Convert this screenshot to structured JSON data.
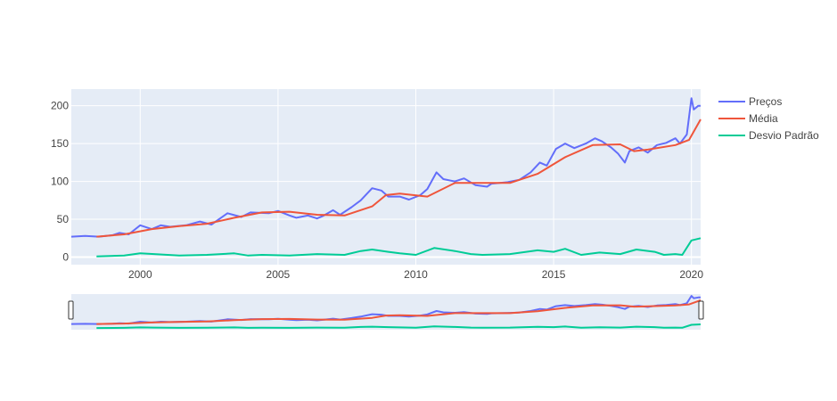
{
  "chart_data": {
    "type": "line",
    "title": "",
    "xlabel": "",
    "ylabel": "",
    "x_axis": {
      "type": "date",
      "range": [
        "1997-07-01",
        "2020-05-01"
      ],
      "ticks": [
        "2000",
        "2005",
        "2010",
        "2015",
        "2020"
      ]
    },
    "y_axis": {
      "range": [
        -10,
        222
      ],
      "ticks": [
        0,
        50,
        100,
        150,
        200
      ],
      "tick_labels": [
        "0",
        "50",
        "100",
        "150",
        "200"
      ]
    },
    "grid": true,
    "legend_position": "right",
    "range_slider": true,
    "series": [
      {
        "name": "Preços",
        "color": "#636efa",
        "points": [
          [
            "1997-07-01",
            27
          ],
          [
            "1998-01-01",
            28
          ],
          [
            "1998-07-01",
            27
          ],
          [
            "1999-01-01",
            29
          ],
          [
            "1999-04-01",
            32
          ],
          [
            "1999-08-01",
            30
          ],
          [
            "2000-01-01",
            42
          ],
          [
            "2000-06-01",
            37
          ],
          [
            "2000-10-01",
            42
          ],
          [
            "2001-02-01",
            40
          ],
          [
            "2001-09-01",
            42
          ],
          [
            "2002-03-01",
            47
          ],
          [
            "2002-08-01",
            43
          ],
          [
            "2003-03-01",
            58
          ],
          [
            "2003-09-01",
            53
          ],
          [
            "2004-01-01",
            59
          ],
          [
            "2004-09-01",
            58
          ],
          [
            "2005-01-01",
            61
          ],
          [
            "2005-06-01",
            55
          ],
          [
            "2005-09-01",
            52
          ],
          [
            "2006-02-01",
            55
          ],
          [
            "2006-06-01",
            51
          ],
          [
            "2006-09-01",
            55
          ],
          [
            "2007-01-01",
            62
          ],
          [
            "2007-04-01",
            56
          ],
          [
            "2007-09-01",
            66
          ],
          [
            "2008-01-01",
            75
          ],
          [
            "2008-06-01",
            91
          ],
          [
            "2008-10-01",
            88
          ],
          [
            "2009-01-01",
            80
          ],
          [
            "2009-06-01",
            80
          ],
          [
            "2009-10-01",
            76
          ],
          [
            "2010-03-01",
            82
          ],
          [
            "2010-06-01",
            90
          ],
          [
            "2010-10-01",
            112
          ],
          [
            "2011-01-01",
            103
          ],
          [
            "2011-06-01",
            100
          ],
          [
            "2011-10-01",
            104
          ],
          [
            "2012-03-01",
            95
          ],
          [
            "2012-08-01",
            93
          ],
          [
            "2012-10-01",
            97
          ],
          [
            "2013-05-01",
            99
          ],
          [
            "2013-10-01",
            102
          ],
          [
            "2014-03-01",
            112
          ],
          [
            "2014-07-01",
            125
          ],
          [
            "2014-10-01",
            121
          ],
          [
            "2015-02-01",
            143
          ],
          [
            "2015-06-01",
            150
          ],
          [
            "2015-10-01",
            144
          ],
          [
            "2016-03-01",
            150
          ],
          [
            "2016-07-01",
            157
          ],
          [
            "2016-10-01",
            153
          ],
          [
            "2017-02-01",
            145
          ],
          [
            "2017-05-01",
            137
          ],
          [
            "2017-08-01",
            125
          ],
          [
            "2017-10-01",
            140
          ],
          [
            "2018-02-01",
            145
          ],
          [
            "2018-06-01",
            138
          ],
          [
            "2018-10-01",
            148
          ],
          [
            "2019-02-01",
            151
          ],
          [
            "2019-06-01",
            157
          ],
          [
            "2019-08-01",
            150
          ],
          [
            "2019-11-01",
            162
          ],
          [
            "2020-01-01",
            210
          ],
          [
            "2020-02-01",
            195
          ],
          [
            "2020-04-01",
            200
          ],
          [
            "2020-05-01",
            200
          ]
        ]
      },
      {
        "name": "Média",
        "color": "#ef553b",
        "points": [
          [
            "1998-06-01",
            27
          ],
          [
            "1999-06-01",
            30
          ],
          [
            "2000-06-01",
            37
          ],
          [
            "2001-06-01",
            41
          ],
          [
            "2002-06-01",
            44
          ],
          [
            "2003-06-01",
            52
          ],
          [
            "2004-06-01",
            59
          ],
          [
            "2005-06-01",
            60
          ],
          [
            "2006-06-01",
            56
          ],
          [
            "2007-06-01",
            55
          ],
          [
            "2008-06-01",
            67
          ],
          [
            "2008-12-01",
            82
          ],
          [
            "2009-06-01",
            84
          ],
          [
            "2010-06-01",
            80
          ],
          [
            "2011-06-01",
            98
          ],
          [
            "2012-06-01",
            98
          ],
          [
            "2013-06-01",
            98
          ],
          [
            "2014-06-01",
            110
          ],
          [
            "2015-06-01",
            132
          ],
          [
            "2016-06-01",
            148
          ],
          [
            "2017-06-01",
            149
          ],
          [
            "2017-12-01",
            140
          ],
          [
            "2018-06-01",
            142
          ],
          [
            "2019-06-01",
            148
          ],
          [
            "2019-12-01",
            155
          ],
          [
            "2020-05-01",
            182
          ]
        ]
      },
      {
        "name": "Desvio Padrão",
        "color": "#00cc96",
        "points": [
          [
            "1998-06-01",
            1
          ],
          [
            "1999-06-01",
            2
          ],
          [
            "2000-01-01",
            5
          ],
          [
            "2000-07-01",
            4
          ],
          [
            "2001-06-01",
            2
          ],
          [
            "2002-06-01",
            3
          ],
          [
            "2003-06-01",
            5
          ],
          [
            "2003-12-01",
            2
          ],
          [
            "2004-06-01",
            3
          ],
          [
            "2005-06-01",
            2
          ],
          [
            "2006-06-01",
            4
          ],
          [
            "2007-06-01",
            3
          ],
          [
            "2008-01-01",
            8
          ],
          [
            "2008-06-01",
            10
          ],
          [
            "2009-01-01",
            7
          ],
          [
            "2009-06-01",
            5
          ],
          [
            "2010-01-01",
            3
          ],
          [
            "2010-09-01",
            12
          ],
          [
            "2011-06-01",
            8
          ],
          [
            "2012-01-01",
            4
          ],
          [
            "2012-06-01",
            3
          ],
          [
            "2013-06-01",
            4
          ],
          [
            "2014-06-01",
            9
          ],
          [
            "2015-01-01",
            7
          ],
          [
            "2015-06-01",
            11
          ],
          [
            "2016-01-01",
            3
          ],
          [
            "2016-09-01",
            6
          ],
          [
            "2017-06-01",
            4
          ],
          [
            "2018-01-01",
            10
          ],
          [
            "2018-09-01",
            7
          ],
          [
            "2019-01-01",
            3
          ],
          [
            "2019-06-01",
            4
          ],
          [
            "2019-09-01",
            3
          ],
          [
            "2020-01-01",
            22
          ],
          [
            "2020-05-01",
            25
          ]
        ]
      }
    ]
  }
}
